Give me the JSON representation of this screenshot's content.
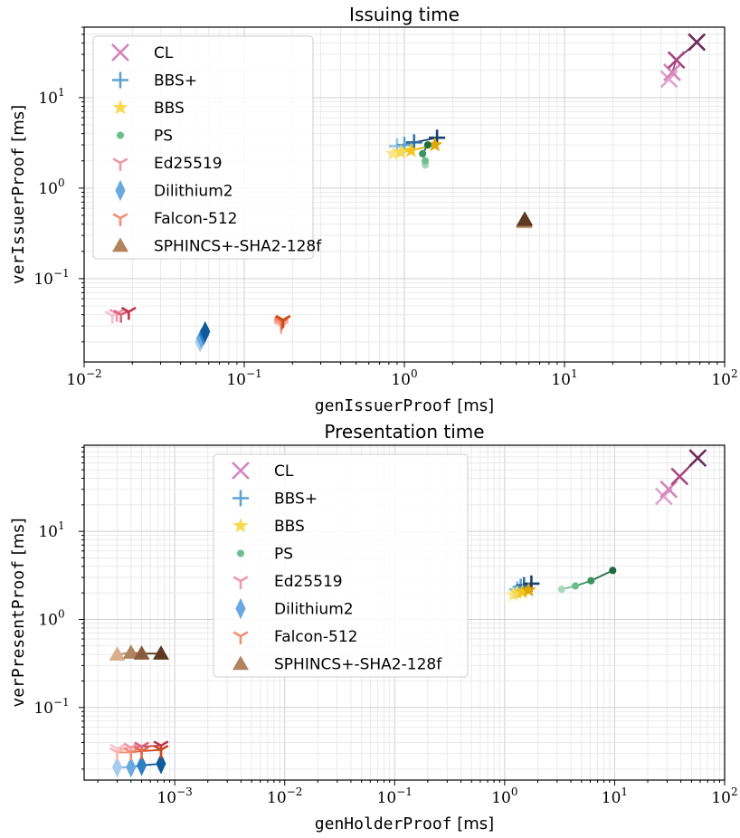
{
  "chart_data": [
    {
      "type": "scatter",
      "title": "Issuing time",
      "xlabel_code": "genIssuerProof",
      "xlabel_unit": "[ms]",
      "ylabel_code": "verIssuerProof",
      "ylabel_unit": "[ms]",
      "xscale": "log",
      "yscale": "log",
      "xlim": [
        0.01,
        100
      ],
      "ylim": [
        0.012,
        60
      ],
      "xticks": [
        0.01,
        0.1,
        1,
        10,
        100
      ],
      "xtick_labels": [
        [
          "10",
          "−2"
        ],
        [
          "10",
          "−1"
        ],
        [
          "10",
          "0"
        ],
        [
          "10",
          "1"
        ],
        [
          "10",
          "2"
        ]
      ],
      "yticks": [
        0.1,
        1,
        10
      ],
      "ytick_labels": [
        [
          "10",
          "−1"
        ],
        [
          "10",
          "0"
        ],
        [
          "10",
          "1"
        ]
      ],
      "grid": true,
      "legend_position": "upper-left",
      "series": [
        {
          "name": "CL",
          "marker": "x",
          "colors": [
            "#e0a3cf",
            "#d385bc",
            "#a9477f",
            "#6e2a5c"
          ],
          "points": [
            [
              45,
              16
            ],
            [
              47,
              19
            ],
            [
              50,
              26
            ],
            [
              67,
              41
            ]
          ]
        },
        {
          "name": "BBS+",
          "marker": "plus",
          "colors": [
            "#8ec4e6",
            "#5ca3d2",
            "#2f6ea8",
            "#17406e"
          ],
          "points": [
            [
              0.9,
              2.9
            ],
            [
              1.0,
              3.0
            ],
            [
              1.15,
              3.2
            ],
            [
              1.6,
              3.6
            ]
          ]
        },
        {
          "name": "BBS",
          "marker": "star",
          "colors": [
            "#fbe78a",
            "#f7d94f",
            "#f2c61f",
            "#e0a800"
          ],
          "points": [
            [
              0.85,
              2.4
            ],
            [
              0.95,
              2.5
            ],
            [
              1.1,
              2.6
            ],
            [
              1.55,
              3.0
            ]
          ]
        },
        {
          "name": "PS",
          "marker": "circle",
          "colors": [
            "#a8d8b9",
            "#6cbf8c",
            "#3a9560",
            "#1f6b3f"
          ],
          "points": [
            [
              1.35,
              1.8
            ],
            [
              1.35,
              2.0
            ],
            [
              1.3,
              2.4
            ],
            [
              1.4,
              3.0
            ]
          ]
        },
        {
          "name": "Ed25519",
          "marker": "tri_down",
          "colors": [
            "#f7c2ce",
            "#ef97ab",
            "#e0627e",
            "#c0354f"
          ],
          "points": [
            [
              0.015,
              0.039
            ],
            [
              0.016,
              0.041
            ],
            [
              0.017,
              0.04
            ],
            [
              0.019,
              0.043
            ]
          ]
        },
        {
          "name": "Dilithium2",
          "marker": "diamond",
          "colors": [
            "#a6cdf0",
            "#6aa9e0",
            "#2d7fc4",
            "#0f5a9c"
          ],
          "points": [
            [
              0.053,
              0.02
            ],
            [
              0.054,
              0.022
            ],
            [
              0.056,
              0.024
            ],
            [
              0.057,
              0.026
            ]
          ]
        },
        {
          "name": "Falcon-512",
          "marker": "tri_down",
          "colors": [
            "#f7b7a5",
            "#f08f74",
            "#e6653f",
            "#c9481c"
          ],
          "points": [
            [
              0.17,
              0.03
            ],
            [
              0.17,
              0.032
            ],
            [
              0.172,
              0.034
            ],
            [
              0.175,
              0.035
            ]
          ]
        },
        {
          "name": "SPHINCS+-SHA2-128f",
          "marker": "triangle",
          "colors": [
            "#d8b08c",
            "#b2835f",
            "#8a5a3c",
            "#5c3a22"
          ],
          "points": [
            [
              5.6,
              0.42
            ],
            [
              5.6,
              0.43
            ],
            [
              5.6,
              0.44
            ],
            [
              5.65,
              0.45
            ]
          ]
        }
      ]
    },
    {
      "type": "scatter",
      "title": "Presentation time",
      "xlabel_code": "genHolderProof",
      "xlabel_unit": "[ms]",
      "ylabel_code": "verPresentProof",
      "ylabel_unit": "[ms]",
      "xscale": "log",
      "yscale": "log",
      "xlim": [
        0.00015,
        100
      ],
      "ylim": [
        0.015,
        95
      ],
      "xticks": [
        0.001,
        0.01,
        0.1,
        1,
        10,
        100
      ],
      "xtick_labels": [
        [
          "10",
          "−3"
        ],
        [
          "10",
          "−2"
        ],
        [
          "10",
          "−1"
        ],
        [
          "10",
          "0"
        ],
        [
          "10",
          "1"
        ],
        [
          "10",
          "2"
        ]
      ],
      "yticks": [
        0.1,
        1,
        10
      ],
      "ytick_labels": [
        [
          "10",
          "−1"
        ],
        [
          "10",
          "0"
        ],
        [
          "10",
          "1"
        ]
      ],
      "grid": true,
      "legend_position": "upper-center",
      "series": [
        {
          "name": "CL",
          "marker": "x",
          "colors": [
            "#e0a3cf",
            "#d385bc",
            "#a9477f",
            "#6e2a5c"
          ],
          "points": [
            [
              28,
              25
            ],
            [
              31,
              30
            ],
            [
              39,
              42
            ],
            [
              57,
              68
            ]
          ]
        },
        {
          "name": "BBS+",
          "marker": "plus",
          "colors": [
            "#8ec4e6",
            "#5ca3d2",
            "#2f6ea8",
            "#17406e"
          ],
          "points": [
            [
              1.3,
              2.2
            ],
            [
              1.4,
              2.35
            ],
            [
              1.5,
              2.45
            ],
            [
              1.75,
              2.55
            ]
          ]
        },
        {
          "name": "BBS",
          "marker": "star",
          "colors": [
            "#fbe78a",
            "#f7d94f",
            "#f2c61f",
            "#e0a800"
          ],
          "points": [
            [
              1.2,
              1.9
            ],
            [
              1.3,
              2.0
            ],
            [
              1.45,
              2.05
            ],
            [
              1.65,
              2.15
            ]
          ]
        },
        {
          "name": "PS",
          "marker": "circle",
          "colors": [
            "#a8d8b9",
            "#6cbf8c",
            "#3a9560",
            "#1f6b3f"
          ],
          "points": [
            [
              3.3,
              2.2
            ],
            [
              4.4,
              2.4
            ],
            [
              6.1,
              2.75
            ],
            [
              9.6,
              3.6
            ]
          ]
        },
        {
          "name": "Ed25519",
          "marker": "tri_down",
          "colors": [
            "#f7c2ce",
            "#ef97ab",
            "#e0627e",
            "#c0354f"
          ],
          "points": [
            [
              0.0003,
              0.034
            ],
            [
              0.0004,
              0.035
            ],
            [
              0.0005,
              0.036
            ],
            [
              0.00075,
              0.037
            ]
          ]
        },
        {
          "name": "Dilithium2",
          "marker": "diamond",
          "colors": [
            "#a6cdf0",
            "#6aa9e0",
            "#2d7fc4",
            "#0f5a9c"
          ],
          "points": [
            [
              0.0003,
              0.021
            ],
            [
              0.0004,
              0.021
            ],
            [
              0.0005,
              0.022
            ],
            [
              0.00075,
              0.023
            ]
          ]
        },
        {
          "name": "Falcon-512",
          "marker": "tri_down",
          "colors": [
            "#f7b7a5",
            "#f08f74",
            "#e6653f",
            "#c9481c"
          ],
          "points": [
            [
              0.0003,
              0.031
            ],
            [
              0.0004,
              0.031
            ],
            [
              0.0005,
              0.032
            ],
            [
              0.00075,
              0.033
            ]
          ]
        },
        {
          "name": "SPHINCS+-SHA2-128f",
          "marker": "triangle",
          "colors": [
            "#d8b08c",
            "#b2835f",
            "#8a5a3c",
            "#5c3a22"
          ],
          "points": [
            [
              0.0003,
              0.4
            ],
            [
              0.0004,
              0.42
            ],
            [
              0.0005,
              0.41
            ],
            [
              0.00075,
              0.41
            ]
          ]
        }
      ]
    }
  ]
}
